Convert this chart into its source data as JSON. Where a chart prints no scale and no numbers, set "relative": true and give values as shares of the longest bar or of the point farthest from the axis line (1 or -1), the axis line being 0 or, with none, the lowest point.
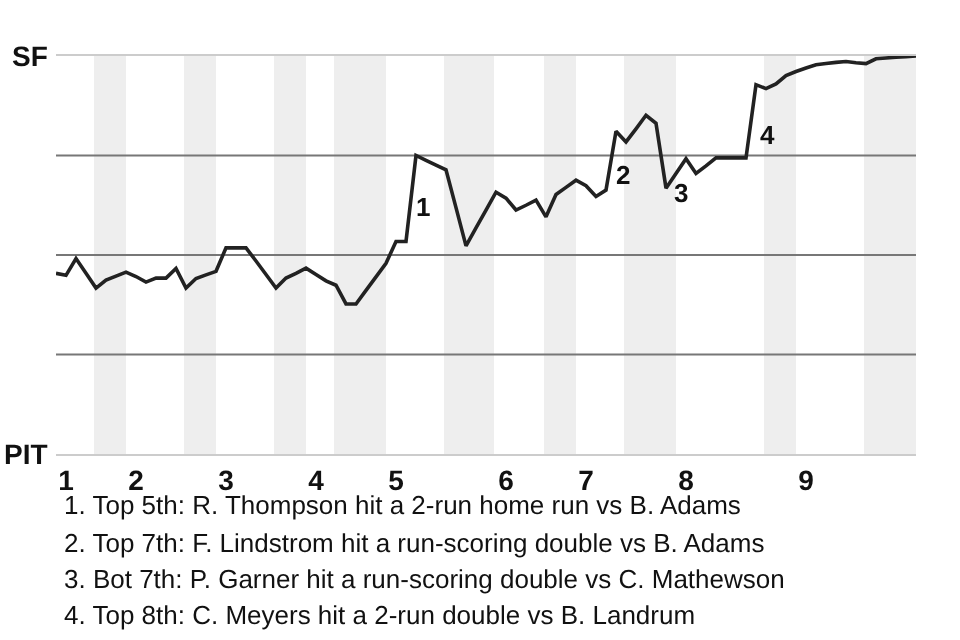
{
  "chart_data": {
    "type": "line",
    "relative": true,
    "categories": [
      null,
      "1",
      null,
      null,
      null,
      null,
      null,
      null,
      "2",
      null,
      null,
      null,
      null,
      null,
      null,
      null,
      null,
      "3",
      null,
      null,
      null,
      null,
      null,
      null,
      null,
      null,
      "4",
      null,
      null,
      null,
      null,
      null,
      null,
      null,
      "5",
      null,
      null,
      null,
      null,
      null,
      null,
      null,
      null,
      null,
      null,
      "6",
      null,
      null,
      null,
      null,
      null,
      null,
      null,
      "7",
      null,
      null,
      null,
      null,
      null,
      null,
      null,
      null,
      null,
      "8",
      null,
      null,
      null,
      null,
      null,
      null,
      null,
      null,
      null,
      null,
      null,
      "9",
      null,
      null,
      null,
      null,
      null,
      null,
      null,
      null,
      null,
      null,
      null
    ],
    "series": [
      {
        "color": "#222222",
        "values": [
          0.454,
          0.449,
          0.491,
          0.454,
          0.417,
          0.437,
          0.447,
          0.457,
          0.446,
          0.432,
          0.442,
          0.442,
          0.466,
          0.417,
          0.441,
          0.45,
          0.459,
          0.518,
          0.518,
          0.518,
          0.485,
          0.451,
          0.417,
          0.442,
          0.454,
          0.467,
          0.451,
          0.435,
          0.424,
          0.377,
          0.377,
          0.411,
          0.445,
          0.479,
          0.534,
          0.534,
          0.75,
          0.738,
          0.726,
          0.714,
          0.619,
          0.523,
          0.568,
          0.613,
          0.658,
          0.643,
          0.613,
          0.625,
          0.638,
          0.596,
          0.652,
          0.67,
          0.688,
          0.674,
          0.647,
          0.663,
          0.811,
          0.784,
          0.817,
          0.851,
          0.831,
          0.668,
          0.705,
          0.742,
          0.705,
          0.724,
          0.744,
          0.744,
          0.744,
          0.744,
          0.928,
          0.918,
          0.93,
          0.951,
          0.961,
          0.97,
          0.978,
          0.981,
          0.984,
          0.986,
          0.983,
          0.981,
          0.993,
          0.995,
          0.997,
          0.998,
          1
        ]
      }
    ],
    "marker": "none",
    "line_style": "solid",
    "ref_lines": [
      {
        "axis": "y",
        "value": 0.25,
        "color": "#777777"
      },
      {
        "axis": "y",
        "value": 0.5,
        "color": "#777777"
      },
      {
        "axis": "y",
        "value": 0.75,
        "color": "#777777"
      }
    ],
    "annotations": [
      "SF",
      "PIT",
      "1",
      "2",
      "3",
      "4",
      "1. Top 5th: R. Thompson hit a 2-run home run vs B. Adams",
      "2. Top 7th: F. Lindstrom hit a run-scoring double vs B. Adams",
      "3. Bot 7th: P. Garner hit a run-scoring double vs C. Mathewson",
      "4. Top 8th: C. Meyers hit a 2-run double vs B. Landrum"
    ]
  }
}
